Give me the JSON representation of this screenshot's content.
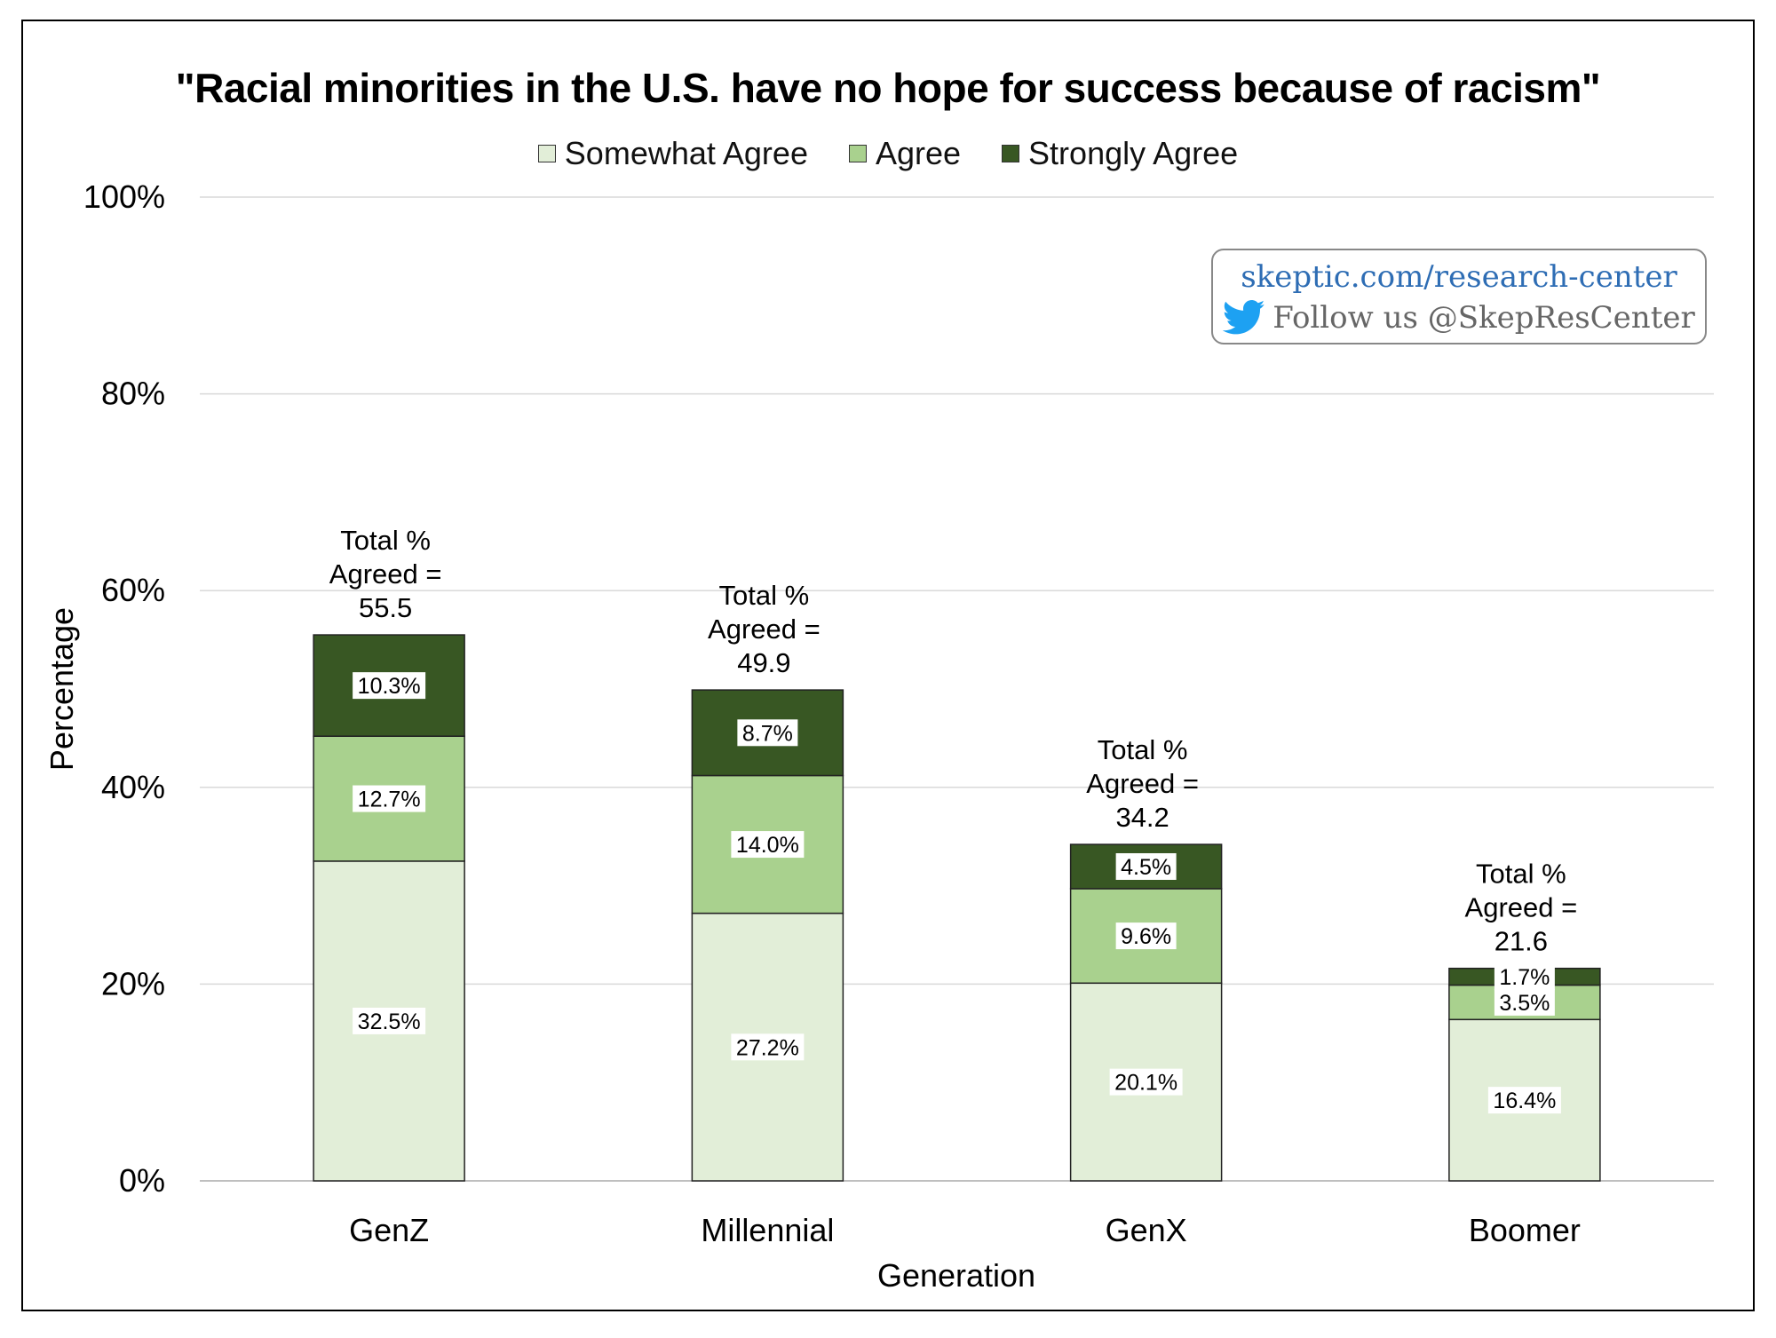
{
  "chart_data": {
    "type": "bar",
    "stacked": true,
    "title": "\"Racial minorities in the U.S. have no hope for success because of racism\"",
    "xlabel": "Generation",
    "ylabel": "Percentage",
    "ylim": [
      0,
      100
    ],
    "yticks": [
      "0%",
      "20%",
      "40%",
      "60%",
      "80%",
      "100%"
    ],
    "grid": true,
    "legend_position": "top",
    "categories": [
      "GenZ",
      "Millennial",
      "GenX",
      "Boomer"
    ],
    "series": [
      {
        "name": "Somewhat Agree",
        "color": "#e2eed8",
        "values": [
          32.5,
          27.2,
          20.1,
          16.4
        ],
        "labels": [
          "32.5%",
          "27.2%",
          "20.1%",
          "16.4%"
        ]
      },
      {
        "name": "Agree",
        "color": "#a9d18e",
        "values": [
          12.7,
          14.0,
          9.6,
          3.5
        ],
        "labels": [
          "12.7%",
          "14.0%",
          "9.6%",
          "3.5%"
        ]
      },
      {
        "name": "Strongly Agree",
        "color": "#385723",
        "values": [
          10.3,
          8.7,
          4.5,
          1.7
        ],
        "labels": [
          "10.3%",
          "8.7%",
          "4.5%",
          "1.7%"
        ]
      }
    ],
    "totals": [
      {
        "line1": "Total %",
        "line2": "Agreed =",
        "value": "55.5",
        "number": 55.5
      },
      {
        "line1": "Total %",
        "line2": "Agreed =",
        "value": "49.9",
        "number": 49.9
      },
      {
        "line1": "Total %",
        "line2": "Agreed =",
        "value": "34.2",
        "number": 34.2
      },
      {
        "line1": "Total %",
        "line2": "Agreed =",
        "value": "21.6",
        "number": 21.6
      }
    ]
  },
  "badge": {
    "url": "skeptic.com/research-center",
    "follow": "Follow us @SkepResCenter",
    "icon": "twitter-bird-icon"
  },
  "colors": {
    "gridline": "#d9d9d9",
    "axis": "#bfbfbf",
    "bar_outline": "#222222",
    "badge_link": "#2e6db4"
  }
}
